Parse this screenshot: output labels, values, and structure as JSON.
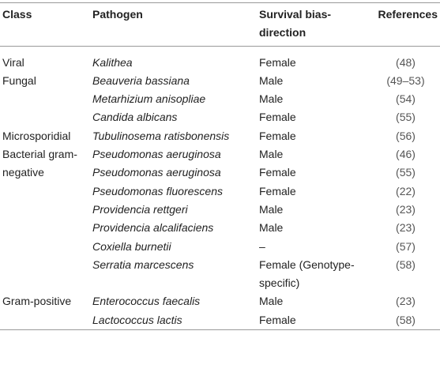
{
  "header": {
    "class": "Class",
    "pathogen": "Pathogen",
    "survival": "Survival bias-direction",
    "references": "References"
  },
  "groups": [
    {
      "class": "Viral",
      "rows": [
        {
          "pathogen": "Kalithea",
          "survival": "Female",
          "references": "(48)"
        }
      ]
    },
    {
      "class": "Fungal",
      "rows": [
        {
          "pathogen": "Beauveria bassiana",
          "survival": "Male",
          "references": "(49–53)"
        },
        {
          "pathogen": "Metarhizium anisopliae",
          "survival": "Male",
          "references": "(54)"
        },
        {
          "pathogen": "Candida albicans",
          "survival": "Female",
          "references": "(55)"
        }
      ]
    },
    {
      "class": "Microsporidial",
      "rows": [
        {
          "pathogen": "Tubulinosema ratisbonensis",
          "survival": "Female",
          "references": "(56)"
        }
      ]
    },
    {
      "class": "Bacterial gram-negative",
      "rows": [
        {
          "pathogen": "Pseudomonas aeruginosa",
          "survival": "Male",
          "references": "(46)"
        },
        {
          "pathogen": "Pseudomonas aeruginosa",
          "survival": "Female",
          "references": "(55)"
        },
        {
          "pathogen": "Pseudomonas fluorescens",
          "survival": "Female",
          "references": "(22)"
        },
        {
          "pathogen": "Providencia rettgeri",
          "survival": "Male",
          "references": "(23)"
        },
        {
          "pathogen": "Providencia alcalifaciens",
          "survival": "Male",
          "references": "(23)"
        },
        {
          "pathogen": "Coxiella burnetii",
          "survival": "–",
          "references": "(57)"
        },
        {
          "pathogen": "Serratia marcescens",
          "survival": "Female (Genotype-specific)",
          "references": "(58)"
        }
      ]
    },
    {
      "class": "Gram-positive",
      "rows": [
        {
          "pathogen": "Enterococcus faecalis",
          "survival": "Male",
          "references": "(23)"
        },
        {
          "pathogen": "Lactococcus lactis",
          "survival": "Female",
          "references": "(58)"
        }
      ]
    }
  ]
}
